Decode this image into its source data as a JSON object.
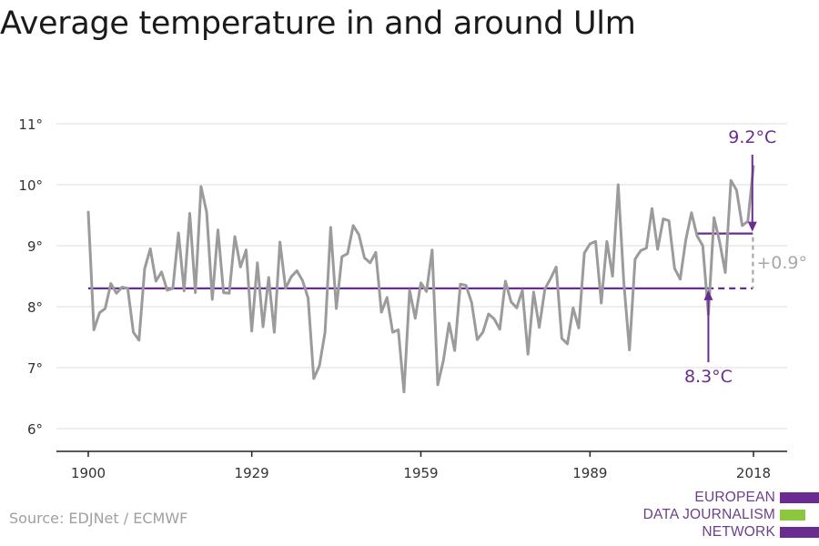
{
  "title": "Average temperature in and around Ulm",
  "source": "Source: EDJNet / ECMWF",
  "logo": {
    "lines": [
      "EUROPEAN",
      "DATA JOURNALISM",
      "NETWORK"
    ],
    "colors": [
      "#6b2c91",
      "#8dc63f",
      "#6b2c91"
    ]
  },
  "chart_data": {
    "type": "line",
    "title": "Average temperature in and around Ulm",
    "xlabel": "",
    "ylabel": "",
    "xlim": [
      1900,
      2018
    ],
    "ylim": [
      6,
      11
    ],
    "x_ticks": [
      1900,
      1929,
      1959,
      1989,
      2018
    ],
    "x_tick_labels": [
      "1900",
      "1929",
      "1959",
      "1989",
      "2018"
    ],
    "y_ticks": [
      6,
      7,
      8,
      9,
      10,
      11
    ],
    "y_tick_labels": [
      "6°",
      "7°",
      "8°",
      "9°",
      "10°",
      "11°"
    ],
    "grid": "horizontal",
    "series": [
      {
        "color": "#9b9b9b",
        "x_start": 1900,
        "x_end": 2018,
        "values": [
          9.55,
          7.62,
          7.9,
          7.97,
          8.38,
          8.22,
          8.32,
          8.3,
          7.58,
          7.45,
          8.62,
          8.95,
          8.42,
          8.57,
          8.27,
          8.3,
          9.21,
          8.26,
          9.53,
          8.23,
          9.97,
          9.55,
          8.12,
          9.26,
          8.23,
          8.22,
          9.15,
          8.65,
          8.93,
          7.6,
          8.72,
          7.67,
          8.48,
          7.58,
          9.06,
          8.3,
          8.49,
          8.59,
          8.43,
          8.14,
          6.82,
          7.03,
          7.58,
          9.3,
          7.97,
          8.82,
          8.87,
          9.33,
          9.18,
          8.8,
          8.72,
          8.89,
          7.91,
          8.15,
          7.58,
          7.62,
          6.6,
          8.27,
          7.81,
          8.39,
          8.25,
          8.93,
          6.72,
          7.12,
          7.73,
          7.28,
          8.37,
          8.35,
          8.07,
          7.46,
          7.58,
          7.88,
          7.8,
          7.63,
          8.42,
          8.08,
          7.98,
          8.27,
          7.22,
          8.24,
          7.66,
          8.29,
          8.46,
          8.65,
          7.48,
          7.39,
          7.98,
          7.65,
          8.88,
          9.03,
          9.07,
          8.06,
          9.07,
          8.5,
          10.0,
          8.4,
          7.29,
          8.78,
          8.92,
          8.96,
          9.61,
          8.94,
          9.44,
          9.41,
          8.63,
          8.45,
          9.1,
          9.54,
          9.16,
          9.0,
          7.87,
          9.46,
          9.06,
          8.56,
          10.07,
          9.91,
          9.33,
          9.4,
          10.3
        ]
      }
    ],
    "reference_lines": [
      {
        "value": 8.3,
        "label": "8.3°C",
        "color": "#6b2c91"
      },
      {
        "value": 9.2,
        "label": "9.2°C",
        "color": "#6b2c91"
      }
    ],
    "difference_label": "+0.9°",
    "difference_color": "#a8a8a8"
  }
}
